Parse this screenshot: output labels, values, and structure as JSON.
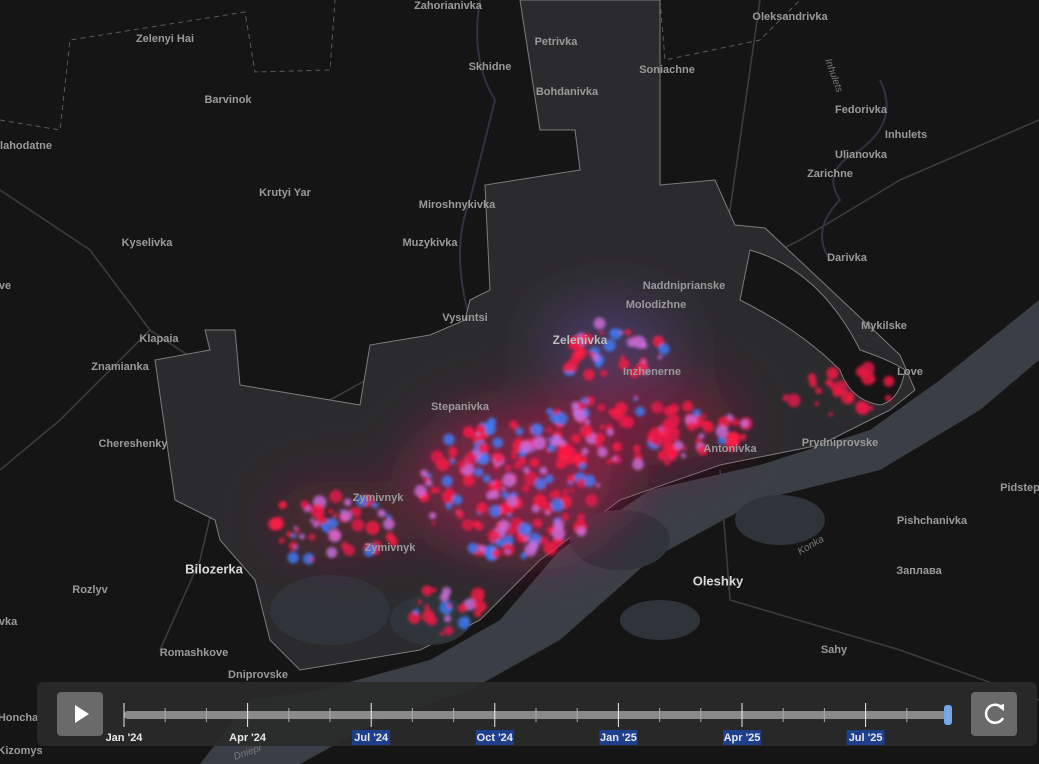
{
  "places": [
    "Zahorianivka",
    "Zelenyi Hai",
    "Petrivka",
    "Skhidne",
    "Oleksandrivka",
    "Soniachne",
    "Barvinok",
    "Bohdanivka",
    "Fedorivka",
    "Inhulets",
    "lahodatne",
    "Ulianovka",
    "Zarichne",
    "Krutyi Yar",
    "Miroshnykivka",
    "Kyselivka",
    "Muzykivka",
    "Darivka",
    "Naddniprianske",
    "ve",
    "Molodizhne",
    "Vysuntsi",
    "Mykilske",
    "Klapaia",
    "Zelenivka",
    "Znamianka",
    "Inzhenerne",
    "Love",
    "Stepanivka",
    "Chereshenky",
    "Prydniprovske",
    "Antonivka",
    "Pidstep",
    "Zymivnyk",
    "Pishchanivka",
    "Zymivnyk",
    "Bilozerka",
    "Oleshky",
    "Заплава",
    "Rozlyv",
    "vka",
    "Romashkove",
    "Sahy",
    "Dniprovske",
    "Honcha",
    "Kizomys"
  ],
  "rivers": [
    "Inhulets",
    "Konka",
    "Dniepr"
  ],
  "timeline": {
    "labels": [
      "Jan '24",
      "Apr '24",
      "Jul '24",
      "Oct '24",
      "Jan '25",
      "Apr '25",
      "Jul '25"
    ],
    "highlighted": [
      false,
      false,
      true,
      true,
      true,
      true,
      true
    ]
  }
}
